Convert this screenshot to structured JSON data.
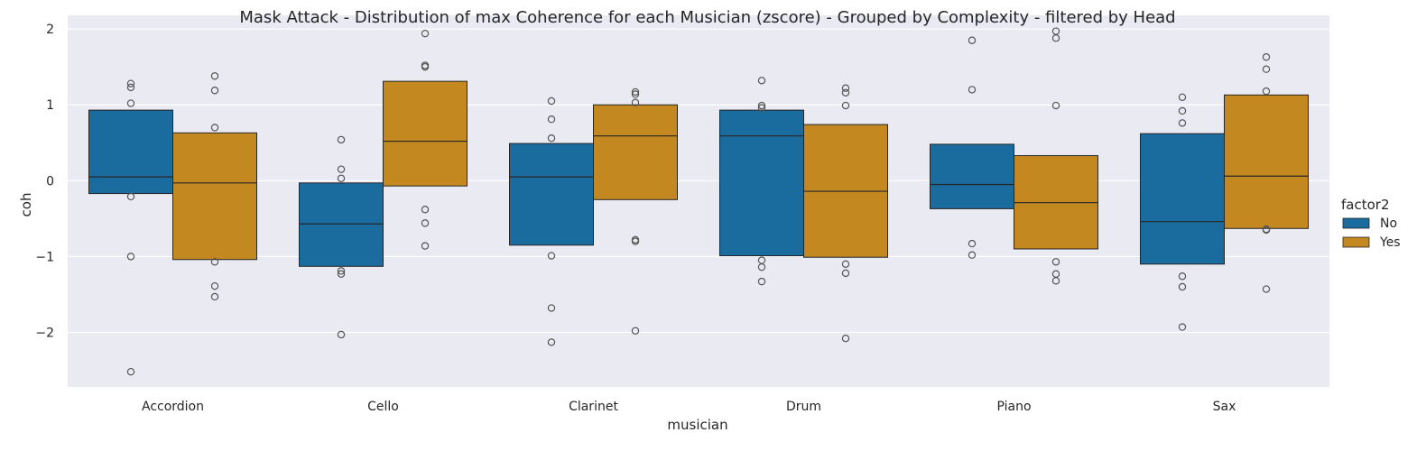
{
  "chart_data": {
    "type": "box",
    "title": "Mask Attack  - Distribution of max Coherence for each Musician (zscore) - Grouped by Complexity - filtered by Head",
    "xlabel": "musician",
    "ylabel": "coh",
    "ylim": [
      -2.72,
      2.18
    ],
    "yticks": [
      2,
      1,
      0,
      -1,
      -2
    ],
    "ytick_labels": [
      "2",
      "1",
      "0",
      "−1",
      "−2"
    ],
    "grid": true,
    "legend": {
      "title": "factor2",
      "position": "right"
    },
    "categories": [
      "Accordion",
      "Cello",
      "Clarinet",
      "Drum",
      "Piano",
      "Sax"
    ],
    "series": [
      {
        "name": "No",
        "color": "#1a6b9e",
        "boxes": [
          {
            "q1": -0.17,
            "median": 0.05,
            "q3": 0.93,
            "outliers": [
              1.28,
              1.23,
              1.02,
              -0.21,
              -1.0,
              -2.52
            ]
          },
          {
            "q1": -1.13,
            "median": -0.57,
            "q3": -0.03,
            "outliers": [
              0.54,
              0.15,
              0.03,
              -1.19,
              -1.23,
              -2.03
            ]
          },
          {
            "q1": -0.85,
            "median": 0.05,
            "q3": 0.49,
            "outliers": [
              1.05,
              0.81,
              0.56,
              -0.99,
              -1.68,
              -2.13
            ]
          },
          {
            "q1": -0.99,
            "median": 0.59,
            "q3": 0.93,
            "outliers": [
              1.32,
              0.99,
              0.96,
              -1.05,
              -1.14,
              -1.33
            ]
          },
          {
            "q1": -0.37,
            "median": -0.05,
            "q3": 0.48,
            "outliers": [
              1.85,
              1.2,
              -0.83,
              -0.98
            ]
          },
          {
            "q1": -1.1,
            "median": -0.54,
            "q3": 0.62,
            "outliers": [
              1.1,
              0.92,
              0.76,
              -1.26,
              -1.4,
              -1.93
            ]
          }
        ]
      },
      {
        "name": "Yes",
        "color": "#c48820",
        "boxes": [
          {
            "q1": -1.04,
            "median": -0.03,
            "q3": 0.63,
            "outliers": [
              1.38,
              1.19,
              0.7,
              -1.07,
              -1.39,
              -1.53
            ]
          },
          {
            "q1": -0.07,
            "median": 0.52,
            "q3": 1.31,
            "outliers": [
              1.94,
              1.52,
              1.5,
              -0.38,
              -0.56,
              -0.86
            ]
          },
          {
            "q1": -0.25,
            "median": 0.59,
            "q3": 1.0,
            "outliers": [
              1.17,
              1.14,
              1.03,
              -0.78,
              -0.8,
              -1.98
            ]
          },
          {
            "q1": -1.01,
            "median": -0.14,
            "q3": 0.74,
            "outliers": [
              1.22,
              1.16,
              0.99,
              -1.1,
              -1.22,
              -2.08
            ]
          },
          {
            "q1": -0.9,
            "median": -0.29,
            "q3": 0.33,
            "outliers": [
              1.97,
              1.88,
              0.99,
              -1.07,
              -1.23,
              -1.32
            ]
          },
          {
            "q1": -0.63,
            "median": 0.06,
            "q3": 1.13,
            "outliers": [
              1.63,
              1.47,
              1.18,
              -0.64,
              -0.65,
              -1.43
            ]
          }
        ]
      }
    ]
  }
}
